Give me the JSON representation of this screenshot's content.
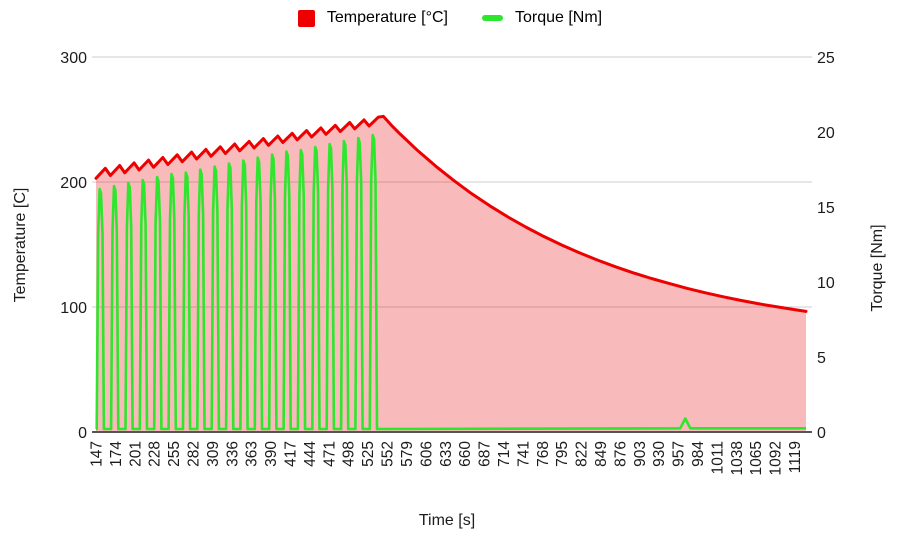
{
  "legend": {
    "temperature_label": "Temperature [°C]",
    "torque_label": "Torque [Nm]",
    "temperature_color": "#ee0000",
    "torque_color": "#2ee62e"
  },
  "axes": {
    "left": {
      "title": "Temperature [C]",
      "ticks": [
        "0",
        "100",
        "200",
        "300"
      ]
    },
    "right": {
      "title": "Torque [Nm]",
      "ticks": [
        "0",
        "5",
        "10",
        "15",
        "20",
        "25"
      ]
    },
    "x": {
      "title": "Time [s]"
    }
  },
  "chart_data": {
    "type": "line",
    "title": "",
    "xlabel": "Time [s]",
    "ylabel_left": "Temperature [C]",
    "ylabel_right": "Torque [Nm]",
    "grid": true,
    "legend_position": "top",
    "xlim": [
      147,
      1135
    ],
    "ylim_left": [
      0,
      300
    ],
    "ylim_right": [
      0,
      25
    ],
    "x_ticks": [
      147,
      174,
      201,
      228,
      255,
      282,
      309,
      336,
      363,
      390,
      417,
      444,
      471,
      498,
      525,
      552,
      579,
      606,
      633,
      660,
      687,
      714,
      741,
      768,
      795,
      822,
      849,
      876,
      903,
      930,
      957,
      984,
      1011,
      1038,
      1065,
      1092,
      1119
    ],
    "series": [
      {
        "name": "Temperature [°C]",
        "yaxis": "left",
        "style": "area-line",
        "color": "#ee0000",
        "fill": "rgba(230,0,0,0.27)",
        "points": [
          [
            147,
            203
          ],
          [
            160,
            211
          ],
          [
            167,
            205.2
          ],
          [
            180,
            213.2
          ],
          [
            187,
            207.4
          ],
          [
            200,
            215.3
          ],
          [
            207,
            209.6
          ],
          [
            220,
            217.5
          ],
          [
            227,
            211.8
          ],
          [
            240,
            219.6
          ],
          [
            247,
            214
          ],
          [
            260,
            221.8
          ],
          [
            267,
            216.2
          ],
          [
            280,
            223.9
          ],
          [
            287,
            218.4
          ],
          [
            300,
            226.1
          ],
          [
            307,
            220.6
          ],
          [
            320,
            228.2
          ],
          [
            327,
            222.8
          ],
          [
            340,
            230.4
          ],
          [
            347,
            225
          ],
          [
            360,
            232.5
          ],
          [
            367,
            227.2
          ],
          [
            380,
            234.7
          ],
          [
            387,
            229.4
          ],
          [
            400,
            236.8
          ],
          [
            407,
            231.6
          ],
          [
            420,
            239
          ],
          [
            427,
            233.8
          ],
          [
            440,
            241.1
          ],
          [
            447,
            236
          ],
          [
            460,
            243.3
          ],
          [
            467,
            238.2
          ],
          [
            480,
            245.4
          ],
          [
            487,
            240.4
          ],
          [
            500,
            247.6
          ],
          [
            507,
            242.6
          ],
          [
            520,
            249.7
          ],
          [
            527,
            244.8
          ],
          [
            540,
            251.9
          ],
          [
            547,
            252.5
          ],
          [
            558,
            245.4
          ],
          [
            570,
            238.5
          ],
          [
            595,
            225
          ],
          [
            620,
            212.6
          ],
          [
            645,
            201.1
          ],
          [
            670,
            190.6
          ],
          [
            695,
            181
          ],
          [
            720,
            172.1
          ],
          [
            745,
            164
          ],
          [
            770,
            156.5
          ],
          [
            795,
            149.6
          ],
          [
            820,
            143.3
          ],
          [
            845,
            137.5
          ],
          [
            870,
            132.2
          ],
          [
            895,
            127.3
          ],
          [
            920,
            122.8
          ],
          [
            945,
            118.7
          ],
          [
            970,
            114.9
          ],
          [
            995,
            111.4
          ],
          [
            1020,
            108.2
          ],
          [
            1045,
            105.2
          ],
          [
            1070,
            102.5
          ],
          [
            1095,
            100.1
          ],
          [
            1119,
            97.9
          ],
          [
            1135,
            96.5
          ]
        ]
      },
      {
        "name": "Torque [Nm]",
        "yaxis": "right",
        "style": "line",
        "color": "#2ee62e",
        "points": [
          [
            147,
            0.2
          ],
          [
            148,
            0.2
          ],
          [
            150,
            13.2
          ],
          [
            152,
            16.2
          ],
          [
            154,
            15.9
          ],
          [
            156,
            13.2
          ],
          [
            158,
            0.2
          ],
          [
            168,
            0.2
          ],
          [
            170,
            13.4
          ],
          [
            172,
            16.4
          ],
          [
            174,
            16.1
          ],
          [
            176,
            13.4
          ],
          [
            178,
            0.2
          ],
          [
            188,
            0.2
          ],
          [
            190,
            13.6
          ],
          [
            192,
            16.6
          ],
          [
            194,
            16.3
          ],
          [
            196,
            13.6
          ],
          [
            198,
            0.2
          ],
          [
            208,
            0.2
          ],
          [
            210,
            13.8
          ],
          [
            212,
            16.8
          ],
          [
            214,
            16.5
          ],
          [
            216,
            13.8
          ],
          [
            218,
            0.2
          ],
          [
            228,
            0.2
          ],
          [
            230,
            14
          ],
          [
            232,
            17
          ],
          [
            234,
            16.7
          ],
          [
            236,
            14
          ],
          [
            238,
            0.2
          ],
          [
            248,
            0.2
          ],
          [
            250,
            14.2
          ],
          [
            252,
            17.2
          ],
          [
            254,
            16.9
          ],
          [
            256,
            14.2
          ],
          [
            258,
            0.2
          ],
          [
            268,
            0.2
          ],
          [
            270,
            14.3
          ],
          [
            272,
            17.3
          ],
          [
            274,
            17
          ],
          [
            276,
            14.3
          ],
          [
            278,
            0.2
          ],
          [
            288,
            0.2
          ],
          [
            290,
            14.5
          ],
          [
            292,
            17.5
          ],
          [
            294,
            17.2
          ],
          [
            296,
            14.5
          ],
          [
            298,
            0.2
          ],
          [
            308,
            0.2
          ],
          [
            310,
            14.7
          ],
          [
            312,
            17.7
          ],
          [
            314,
            17.4
          ],
          [
            316,
            14.7
          ],
          [
            318,
            0.2
          ],
          [
            328,
            0.2
          ],
          [
            330,
            14.9
          ],
          [
            332,
            17.9
          ],
          [
            334,
            17.6
          ],
          [
            336,
            14.9
          ],
          [
            338,
            0.2
          ],
          [
            348,
            0.2
          ],
          [
            350,
            15.1
          ],
          [
            352,
            18.1
          ],
          [
            354,
            17.8
          ],
          [
            356,
            15.1
          ],
          [
            358,
            0.2
          ],
          [
            368,
            0.2
          ],
          [
            370,
            15.3
          ],
          [
            372,
            18.3
          ],
          [
            374,
            18
          ],
          [
            376,
            15.3
          ],
          [
            378,
            0.2
          ],
          [
            388,
            0.2
          ],
          [
            390,
            15.5
          ],
          [
            392,
            18.5
          ],
          [
            394,
            18.2
          ],
          [
            396,
            15.5
          ],
          [
            398,
            0.2
          ],
          [
            408,
            0.2
          ],
          [
            410,
            15.7
          ],
          [
            412,
            18.7
          ],
          [
            414,
            18.4
          ],
          [
            416,
            15.7
          ],
          [
            418,
            0.2
          ],
          [
            428,
            0.2
          ],
          [
            430,
            15.8
          ],
          [
            432,
            18.8
          ],
          [
            434,
            18.5
          ],
          [
            436,
            15.8
          ],
          [
            438,
            0.2
          ],
          [
            448,
            0.2
          ],
          [
            450,
            16
          ],
          [
            452,
            19
          ],
          [
            454,
            18.7
          ],
          [
            456,
            16
          ],
          [
            458,
            0.2
          ],
          [
            468,
            0.2
          ],
          [
            470,
            16.2
          ],
          [
            472,
            19.2
          ],
          [
            474,
            18.9
          ],
          [
            476,
            16.2
          ],
          [
            478,
            0.2
          ],
          [
            488,
            0.2
          ],
          [
            490,
            16.4
          ],
          [
            492,
            19.4
          ],
          [
            494,
            19.1
          ],
          [
            496,
            16.4
          ],
          [
            498,
            0.2
          ],
          [
            508,
            0.2
          ],
          [
            510,
            16.6
          ],
          [
            512,
            19.6
          ],
          [
            514,
            19.3
          ],
          [
            516,
            16.6
          ],
          [
            518,
            0.2
          ],
          [
            528,
            0.2
          ],
          [
            530,
            16.8
          ],
          [
            532,
            19.8
          ],
          [
            534,
            19.5
          ],
          [
            536,
            16.8
          ],
          [
            538,
            0.2
          ],
          [
            960,
            0.25
          ],
          [
            967,
            0.9
          ],
          [
            974,
            0.25
          ],
          [
            1135,
            0.25
          ]
        ]
      }
    ]
  }
}
